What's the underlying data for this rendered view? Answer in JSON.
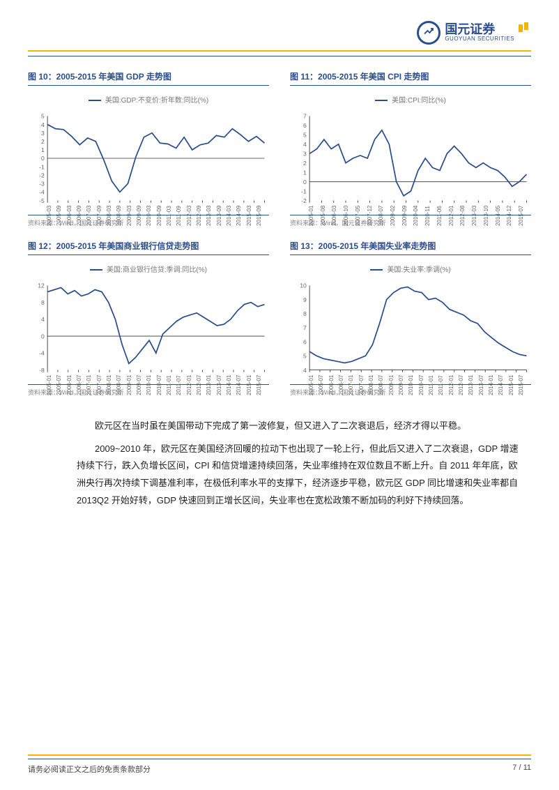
{
  "header": {
    "company_cn": "国元证券",
    "company_en": "GUOYUAN SECURITIES"
  },
  "charts": [
    {
      "id": "c10",
      "title": "图 10：2005-2015 年美国 GDP 走势图",
      "legend": "美国:GDP:不变价:折年数:同比(%)",
      "source": "资料来源：Wind，国元证券研究所",
      "y_min": -5,
      "y_max": 5,
      "y_step": 1,
      "y_ticks": [
        "5",
        "4",
        "3",
        "2",
        "1",
        "0",
        "-1",
        "-2",
        "-3",
        "-4",
        "-5"
      ],
      "x_ticks": [
        "2005-03",
        "2005-09",
        "2006-03",
        "2006-09",
        "2007-03",
        "2007-09",
        "2008-03",
        "2008-09",
        "2009-03",
        "2009-09",
        "2010-03",
        "2010-09",
        "2011-03",
        "2011-09",
        "2012-03",
        "2012-09",
        "2013-03",
        "2013-09",
        "2014-03",
        "2014-09",
        "2015-03",
        "2015-09"
      ],
      "values": [
        4.0,
        3.5,
        3.4,
        2.6,
        1.6,
        2.4,
        2.0,
        -0.2,
        -2.7,
        -4.0,
        -3.0,
        0.2,
        2.5,
        3.0,
        1.8,
        1.7,
        1.2,
        2.5,
        1.0,
        1.6,
        1.8,
        2.7,
        2.5,
        3.5,
        2.8,
        2.0,
        2.6,
        1.8
      ]
    },
    {
      "id": "c11",
      "title": "图 11：2005-2015 年美国 CPI 走势图",
      "legend": "美国:CPI:同比(%)",
      "source": "资料来源：Wind，国元证券研究所",
      "y_min": -2,
      "y_max": 7,
      "y_step": 1,
      "y_ticks": [
        "7",
        "6",
        "5",
        "4",
        "3",
        "2",
        "1",
        "0",
        "-1",
        "-2"
      ],
      "x_ticks": [
        "2005-01",
        "2005-08",
        "2006-03",
        "2006-10",
        "2007-05",
        "2007-12",
        "2008-07",
        "2009-02",
        "2009-09",
        "2010-04",
        "2010-11",
        "2011-06",
        "2012-01",
        "2012-08",
        "2013-03",
        "2013-10",
        "2014-05",
        "2014-12",
        "2015-07"
      ],
      "values": [
        3.0,
        3.5,
        4.5,
        3.5,
        4.0,
        2.0,
        2.5,
        2.8,
        2.5,
        4.5,
        5.5,
        4.0,
        0.0,
        -1.5,
        -1.0,
        1.2,
        2.5,
        1.5,
        1.2,
        3.0,
        3.8,
        3.0,
        2.0,
        1.5,
        2.0,
        1.5,
        1.2,
        0.5,
        -0.5,
        0.0,
        0.8
      ]
    },
    {
      "id": "c12",
      "title": "图 12：2005-2015 年美国商业银行信贷走势图",
      "legend": "美国:商业银行信贷:季调:同比(%)",
      "source": "资料来源：Wind，国元证券研究所",
      "y_min": -8,
      "y_max": 12,
      "y_step": 4,
      "y_ticks": [
        "12",
        "8",
        "4",
        "0",
        "-4",
        "-8"
      ],
      "x_ticks": [
        "2005-01",
        "2005-07",
        "2006-01",
        "2006-07",
        "2007-01",
        "2007-07",
        "2008-01",
        "2008-07",
        "2009-01",
        "2009-07",
        "2010-01",
        "2010-07",
        "2011-01",
        "2011-07",
        "2012-01",
        "2012-07",
        "2013-01",
        "2013-07",
        "2014-01",
        "2014-07",
        "2015-01",
        "2015-07"
      ],
      "values": [
        10.5,
        11.0,
        11.5,
        10.0,
        10.8,
        9.5,
        10.0,
        11.0,
        10.5,
        8.0,
        4.0,
        -2.0,
        -6.5,
        -5.0,
        -3.0,
        -1.0,
        -4.0,
        0.5,
        2.0,
        3.5,
        4.5,
        5.0,
        5.5,
        4.5,
        3.5,
        2.5,
        2.8,
        4.0,
        6.0,
        7.5,
        8.0,
        7.0,
        7.5
      ]
    },
    {
      "id": "c13",
      "title": "图 13：2005-2015 年美国失业率走势图",
      "legend": "美国:失业率:季调(%)",
      "source": "资料来源：Wind，国元证券研究所",
      "y_min": 4,
      "y_max": 10,
      "y_step": 1,
      "y_ticks": [
        "10",
        "9",
        "8",
        "7",
        "6",
        "5",
        "4"
      ],
      "x_ticks": [
        "2005-01",
        "2005-07",
        "2006-01",
        "2006-07",
        "2007-01",
        "2007-07",
        "2008-01",
        "2008-07",
        "2009-01",
        "2009-07",
        "2010-01",
        "2010-07",
        "2011-01",
        "2011-07",
        "2012-01",
        "2012-07",
        "2013-01",
        "2013-07",
        "2014-01",
        "2014-07",
        "2015-01",
        "2015-07"
      ],
      "values": [
        5.3,
        5.0,
        4.8,
        4.7,
        4.6,
        4.5,
        4.6,
        4.8,
        5.0,
        5.8,
        7.3,
        9.0,
        9.5,
        9.8,
        9.9,
        9.6,
        9.5,
        9.0,
        9.1,
        8.8,
        8.3,
        8.1,
        7.9,
        7.5,
        7.3,
        6.7,
        6.3,
        5.9,
        5.6,
        5.3,
        5.1,
        5.0
      ]
    }
  ],
  "body": {
    "p1": "欧元区在当时虽在美国带动下完成了第一波修复，但又进入了二次衰退后，经济才得以平稳。",
    "p2": "2009~2010 年，欧元区在美国经济回暖的拉动下也出现了一轮上行，但此后又进入了二次衰退，GDP 增速持续下行，跌入负增长区间，CPI 和信贷增速持续回落，失业率维持在双位数且不断上升。自 2011 年年底，欧洲央行再次持续下调基准利率，在极低利率水平的支撑下，经济逐步平稳，欧元区 GDP 同比增速和失业率都自 2013Q2 开始好转，GDP 快速回到正增长区间，失业率也在宽松政策不断加码的利好下持续回落。"
  },
  "footer": {
    "disclaimer": "请务必阅读正文之后的免责条款部分",
    "page": "7 / 11"
  },
  "style": {
    "series_color": "#2a4d8c",
    "accent_color": "#f5b400",
    "grid_color": "#999999",
    "text_color": "#333333"
  }
}
